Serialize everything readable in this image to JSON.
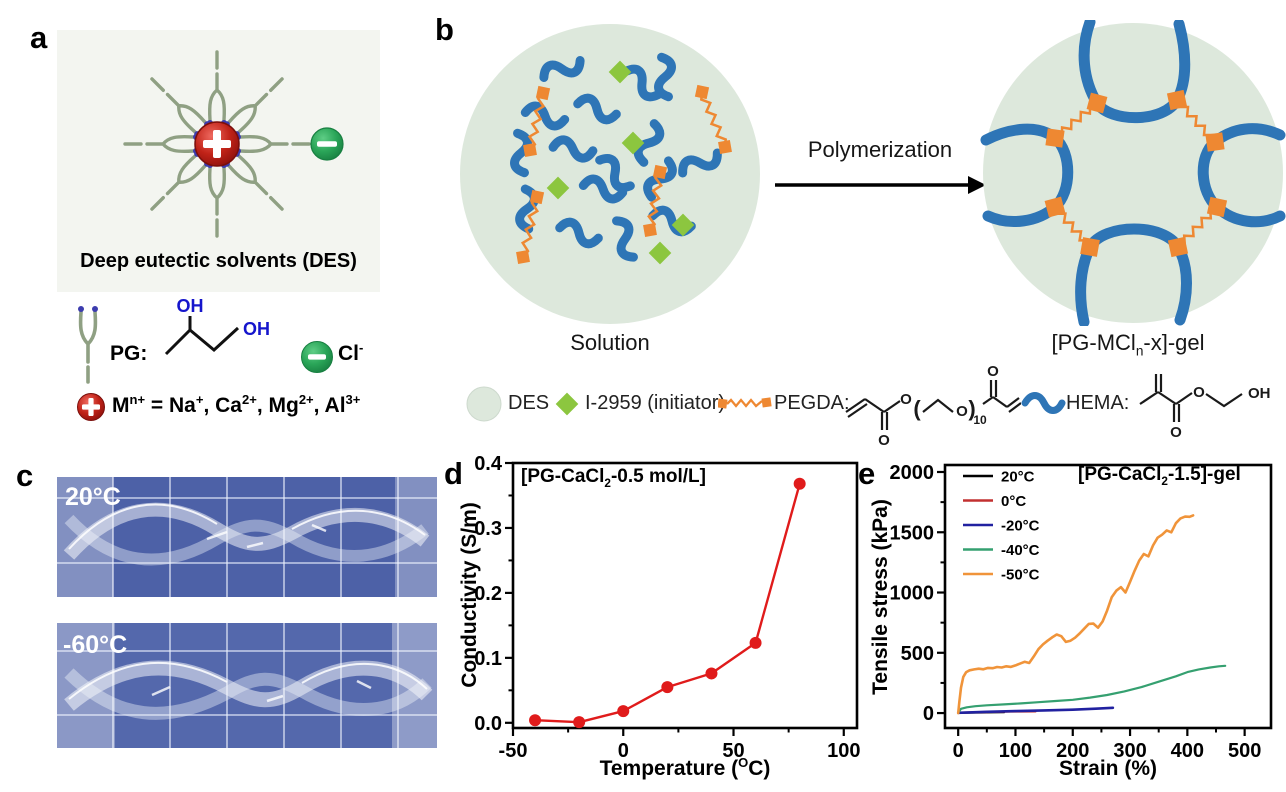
{
  "figure": {
    "panel_labels": {
      "a": "a",
      "b": "b",
      "c": "c",
      "d": "d",
      "e": "e"
    }
  },
  "panel_a": {
    "title": "Deep eutectic solvents (DES)",
    "pg_label": "PG:",
    "oh_top": "OH",
    "oh_right": "OH",
    "anion_parts": [
      {
        "t": "Cl"
      },
      {
        "sup": "-"
      }
    ],
    "cation_parts": [
      {
        "t": "M"
      },
      {
        "sup": "n+"
      },
      {
        "t": " = Na"
      },
      {
        "sup": "+"
      },
      {
        "t": ", Ca"
      },
      {
        "sup": "2+"
      },
      {
        "t": ", Mg"
      },
      {
        "sup": "2+"
      },
      {
        "t": ", Al"
      },
      {
        "sup": "3+"
      }
    ],
    "colors": {
      "cation_red": "#b32017",
      "anion_green": "#2aa558",
      "pg_olive": "#8fa083",
      "ion_dot_blue": "#3c3cae",
      "panel_bg": "#f3f5f0",
      "oh_text_blue": "#1515cc"
    }
  },
  "panel_b": {
    "solution_caption": "Solution",
    "arrow_label": "Polymerization",
    "gel_caption_parts": [
      {
        "t": "[PG-MCl"
      },
      {
        "sub": "n"
      },
      {
        "t": "-x]-gel"
      }
    ],
    "legend": {
      "des": "DES",
      "initiator": "I-2959 (initiator)",
      "pegda": "PEGDA:",
      "hema": "HEMA:"
    },
    "chem": {
      "o": "O",
      "oh": "OH",
      "sub10": "10"
    },
    "colors": {
      "des_bg": "#dde8dc",
      "hema_blue": "#2e75b6",
      "pegda_orange": "#ee8832",
      "initiator_green": "#8cc63f"
    }
  },
  "panel_c": {
    "photo_top_label": "20°C",
    "photo_bottom_label": "-60°C"
  },
  "chart_data": [
    {
      "type": "line",
      "panel": "d",
      "title_parts": [
        {
          "t": "[PG-CaCl"
        },
        {
          "sub": "2"
        },
        {
          "t": "-0.5 mol/L]"
        }
      ],
      "xlabel_parts": [
        {
          "t": "Temperature ("
        },
        {
          "sup": "O"
        },
        {
          "t": "C)"
        }
      ],
      "ylabel": "Conductivity (S/m)",
      "xlim": [
        -50,
        106
      ],
      "ylim": [
        -0.008,
        0.4
      ],
      "xticks": [
        {
          "v": -50,
          "l": "-50"
        },
        {
          "v": 0,
          "l": "0"
        },
        {
          "v": 50,
          "l": "50"
        },
        {
          "v": 100,
          "l": "100"
        }
      ],
      "yticks": [
        {
          "v": 0,
          "l": "0.0"
        },
        {
          "v": 0.1,
          "l": "0.1"
        },
        {
          "v": 0.2,
          "l": "0.2"
        },
        {
          "v": 0.3,
          "l": "0.3"
        },
        {
          "v": 0.4,
          "l": "0.4"
        }
      ],
      "xminor": [
        -25,
        25,
        75
      ],
      "yminor": [
        0.05,
        0.15,
        0.25,
        0.35
      ],
      "grid": false,
      "series": [
        {
          "name": "conductivity",
          "color": "#e01b1b",
          "marker": true,
          "width": 2.4,
          "x": [
            -40,
            -20,
            0,
            20,
            40,
            60,
            80
          ],
          "y": [
            0.004,
            0.001,
            0.018,
            0.055,
            0.076,
            0.123,
            0.368
          ]
        }
      ]
    },
    {
      "type": "line",
      "panel": "e",
      "title_parts": [
        {
          "t": "[PG-CaCl"
        },
        {
          "sub": "2"
        },
        {
          "t": "-1.5]-gel"
        }
      ],
      "xlabel": "Strain (%)",
      "ylabel": "Tensile stress (kPa)",
      "xlim": [
        -23,
        546
      ],
      "ylim": [
        -124,
        2058
      ],
      "xticks": [
        {
          "v": 0,
          "l": "0"
        },
        {
          "v": 100,
          "l": "100"
        },
        {
          "v": 200,
          "l": "200"
        },
        {
          "v": 300,
          "l": "300"
        },
        {
          "v": 400,
          "l": "400"
        },
        {
          "v": 500,
          "l": "500"
        }
      ],
      "yticks": [
        {
          "v": 0,
          "l": "0"
        },
        {
          "v": 500,
          "l": "500"
        },
        {
          "v": 1000,
          "l": "1000"
        },
        {
          "v": 1500,
          "l": "1500"
        },
        {
          "v": 2000,
          "l": "2000"
        }
      ],
      "xminor": [
        50,
        150,
        250,
        350,
        450
      ],
      "yminor": [
        250,
        750,
        1250,
        1750
      ],
      "grid": false,
      "legend_position": "top-left",
      "series": [
        {
          "name": "20°C",
          "color": "#000000",
          "width": 2.2,
          "x": [
            0,
            20,
            40,
            60,
            80
          ],
          "y": [
            2,
            4,
            5,
            6,
            7
          ]
        },
        {
          "name": "0°C",
          "color": "#c23030",
          "width": 2.2,
          "x": [
            0,
            25,
            50,
            80,
            110,
            135
          ],
          "y": [
            3,
            6,
            9,
            11,
            13,
            14
          ]
        },
        {
          "name": "-20°C",
          "color": "#2121a0",
          "width": 2.6,
          "x": [
            0,
            50,
            100,
            150,
            200,
            240,
            270
          ],
          "y": [
            2,
            10,
            16,
            22,
            28,
            36,
            44
          ]
        },
        {
          "name": "-40°C",
          "color": "#35a070",
          "width": 2.2,
          "x": [
            0,
            5,
            15,
            30,
            50,
            80,
            110,
            140,
            170,
            200,
            230,
            260,
            290,
            320,
            350,
            380,
            400,
            420,
            440,
            455,
            466
          ],
          "y": [
            5,
            35,
            48,
            57,
            64,
            72,
            80,
            90,
            100,
            110,
            128,
            150,
            180,
            215,
            260,
            305,
            340,
            362,
            378,
            388,
            392
          ]
        },
        {
          "name": "-50°C",
          "color": "#f0943a",
          "width": 2.6,
          "x": [
            0,
            2,
            5,
            9,
            14,
            20,
            28,
            36,
            44,
            52,
            60,
            68,
            76,
            84,
            92,
            100,
            108,
            116,
            124,
            132,
            140,
            148,
            156,
            164,
            172,
            180,
            188,
            196,
            204,
            212,
            220,
            228,
            236,
            244,
            252,
            260,
            268,
            276,
            284,
            292,
            300,
            308,
            316,
            324,
            332,
            340,
            348,
            356,
            364,
            372,
            380,
            388,
            396,
            404,
            410
          ],
          "y": [
            0,
            90,
            210,
            300,
            340,
            355,
            362,
            368,
            363,
            375,
            372,
            382,
            378,
            388,
            383,
            395,
            410,
            425,
            415,
            470,
            530,
            570,
            600,
            628,
            652,
            638,
            590,
            600,
            625,
            660,
            700,
            740,
            742,
            708,
            760,
            850,
            960,
            1015,
            1045,
            1000,
            1090,
            1180,
            1265,
            1320,
            1300,
            1390,
            1455,
            1480,
            1515,
            1500,
            1575,
            1615,
            1630,
            1628,
            1640
          ]
        }
      ]
    }
  ]
}
